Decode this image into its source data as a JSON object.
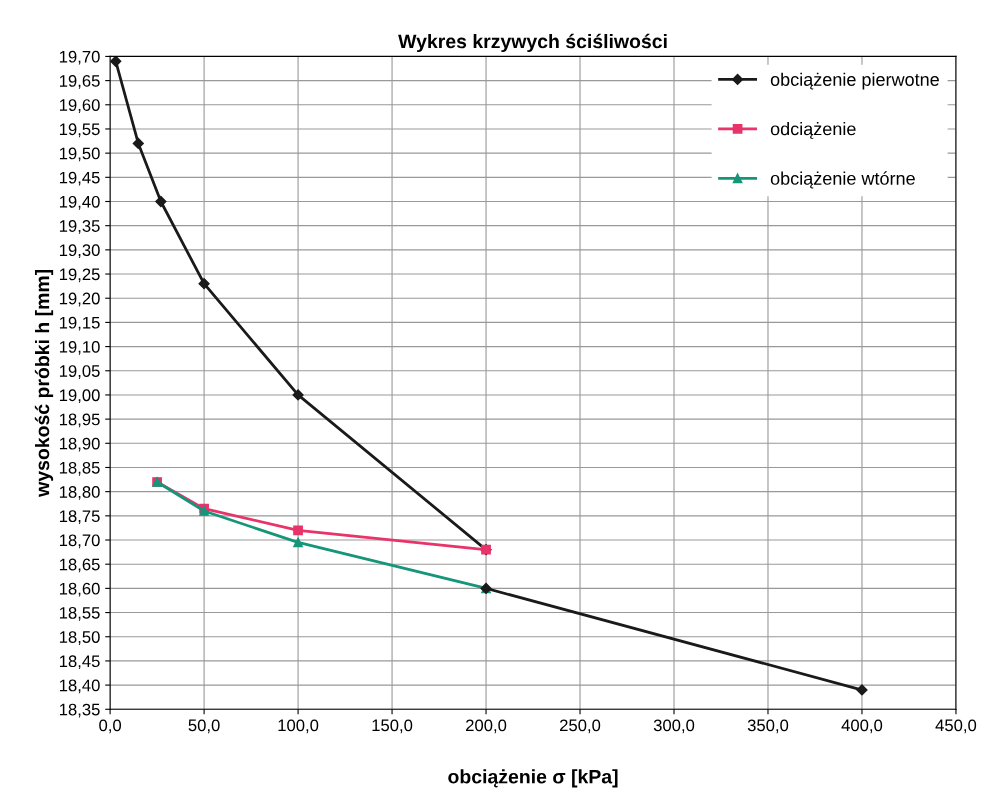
{
  "chart_data": {
    "type": "line",
    "title": "Wykres krzywych ściśliwości",
    "xlabel": "obciążenie σ [kPa]",
    "ylabel": "wysokość próbki h [mm]",
    "xlim": [
      0,
      450
    ],
    "xticks": [
      {
        "value": 0,
        "label": "0,0"
      },
      {
        "value": 50,
        "label": "50,0"
      },
      {
        "value": 100,
        "label": "100,0"
      },
      {
        "value": 150,
        "label": "150,0"
      },
      {
        "value": 200,
        "label": "200,0"
      },
      {
        "value": 250,
        "label": "250,0"
      },
      {
        "value": 300,
        "label": "300,0"
      },
      {
        "value": 350,
        "label": "350,0"
      },
      {
        "value": 400,
        "label": "400,0"
      },
      {
        "value": 450,
        "label": "450,0"
      }
    ],
    "ylim": [
      18.35,
      19.7
    ],
    "yticks": [
      {
        "value": 18.35,
        "label": "18,35"
      },
      {
        "value": 18.4,
        "label": "18,40"
      },
      {
        "value": 18.45,
        "label": "18,45"
      },
      {
        "value": 18.5,
        "label": "18,50"
      },
      {
        "value": 18.55,
        "label": "18,55"
      },
      {
        "value": 18.6,
        "label": "18,60"
      },
      {
        "value": 18.65,
        "label": "18,65"
      },
      {
        "value": 18.7,
        "label": "18,70"
      },
      {
        "value": 18.75,
        "label": "18,75"
      },
      {
        "value": 18.8,
        "label": "18,80"
      },
      {
        "value": 18.85,
        "label": "18,85"
      },
      {
        "value": 18.9,
        "label": "18,90"
      },
      {
        "value": 18.95,
        "label": "18,95"
      },
      {
        "value": 19.0,
        "label": "19,00"
      },
      {
        "value": 19.05,
        "label": "19,05"
      },
      {
        "value": 19.1,
        "label": "19,10"
      },
      {
        "value": 19.15,
        "label": "19,15"
      },
      {
        "value": 19.2,
        "label": "19,20"
      },
      {
        "value": 19.25,
        "label": "19,25"
      },
      {
        "value": 19.3,
        "label": "19,30"
      },
      {
        "value": 19.35,
        "label": "19,35"
      },
      {
        "value": 19.4,
        "label": "19,40"
      },
      {
        "value": 19.45,
        "label": "19,45"
      },
      {
        "value": 19.5,
        "label": "19,50"
      },
      {
        "value": 19.55,
        "label": "19,55"
      },
      {
        "value": 19.6,
        "label": "19,60"
      },
      {
        "value": 19.65,
        "label": "19,65"
      },
      {
        "value": 19.7,
        "label": "19,70"
      }
    ],
    "grid": true,
    "legend": "top right",
    "series": [
      {
        "name": "obciążenie pierwotne",
        "color": "#1a1a1a",
        "marker": "diamond",
        "x": [
          3,
          15,
          27,
          50,
          100,
          200
        ],
        "values": [
          19.69,
          19.52,
          19.4,
          19.23,
          19.0,
          18.68
        ]
      },
      {
        "name": "odciążenie",
        "color": "#e8336b",
        "marker": "square",
        "x": [
          25,
          50,
          100,
          200
        ],
        "values": [
          18.82,
          18.765,
          18.72,
          18.68
        ]
      },
      {
        "name": "obciążenie wtórne",
        "color": "#14967a",
        "marker": "triangle",
        "x": [
          25,
          50,
          100,
          200
        ],
        "values": [
          18.82,
          18.76,
          18.695,
          18.6
        ]
      },
      {
        "color": "#1a1a1a",
        "marker": "diamond",
        "x": [
          200,
          400
        ],
        "values": [
          18.6,
          18.39
        ]
      }
    ]
  }
}
